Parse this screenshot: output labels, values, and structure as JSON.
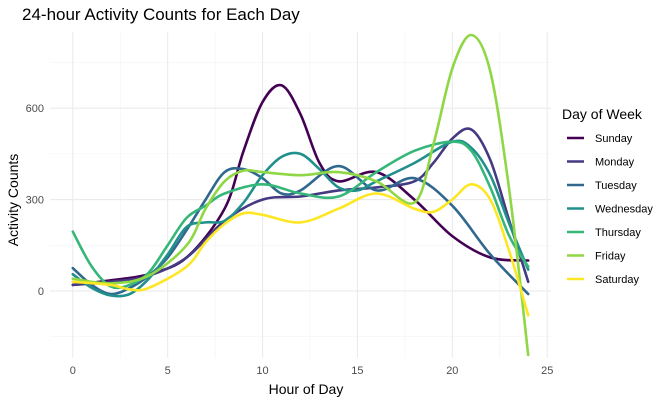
{
  "chart_data": {
    "type": "line",
    "title": "24-hour Activity Counts for Each Day",
    "xlabel": "Hour of Day",
    "ylabel": "Activity Counts",
    "xlim": [
      -1.2,
      25.2
    ],
    "ylim": [
      -220,
      850
    ],
    "x_ticks": [
      0,
      5,
      10,
      15,
      20,
      25
    ],
    "y_ticks": [
      0,
      300,
      600
    ],
    "grid": true,
    "legend": {
      "title": "Day of Week",
      "position": "right"
    },
    "series": [
      {
        "name": "Sunday",
        "color": "#440154",
        "x": [
          0,
          2,
          4,
          6,
          8,
          9,
          10,
          11,
          12,
          13,
          14,
          16,
          18,
          20,
          22,
          24
        ],
        "y": [
          20,
          35,
          55,
          110,
          270,
          460,
          620,
          675,
          580,
          420,
          360,
          390,
          300,
          180,
          110,
          100
        ]
      },
      {
        "name": "Monday",
        "color": "#443a83",
        "x": [
          0,
          2,
          4,
          6,
          8,
          10,
          12,
          14,
          16,
          18,
          19,
          20,
          21,
          22,
          23,
          24
        ],
        "y": [
          20,
          30,
          50,
          110,
          230,
          300,
          310,
          330,
          340,
          360,
          420,
          500,
          530,
          430,
          230,
          30
        ]
      },
      {
        "name": "Tuesday",
        "color": "#31688e",
        "x": [
          0,
          1,
          2,
          3,
          4,
          5,
          6,
          7,
          8,
          9,
          10,
          11,
          12,
          14,
          16,
          18,
          20,
          22,
          24
        ],
        "y": [
          75,
          20,
          -10,
          10,
          50,
          110,
          200,
          300,
          390,
          400,
          370,
          320,
          330,
          410,
          330,
          370,
          280,
          120,
          -10
        ]
      },
      {
        "name": "Wednesday",
        "color": "#21908d",
        "x": [
          0,
          1,
          2,
          3,
          4,
          5,
          6,
          7,
          8,
          9,
          10,
          11,
          12,
          13,
          14,
          15,
          16,
          18,
          20,
          21,
          22,
          23,
          24
        ],
        "y": [
          55,
          10,
          -15,
          -10,
          40,
          120,
          210,
          225,
          230,
          290,
          380,
          440,
          450,
          400,
          340,
          330,
          360,
          420,
          490,
          470,
          380,
          220,
          70
        ]
      },
      {
        "name": "Thursday",
        "color": "#35b779",
        "x": [
          0,
          1,
          2,
          3,
          4,
          5,
          6,
          7,
          8,
          10,
          12,
          14,
          16,
          18,
          20,
          21,
          22,
          23,
          24
        ],
        "y": [
          195,
          80,
          15,
          20,
          60,
          150,
          240,
          280,
          320,
          350,
          320,
          310,
          390,
          460,
          490,
          460,
          340,
          180,
          80
        ]
      },
      {
        "name": "Friday",
        "color": "#8fd744",
        "x": [
          0,
          2,
          4,
          6,
          7,
          8,
          9,
          10,
          12,
          14,
          16,
          18,
          19,
          20,
          21,
          22,
          23,
          24
        ],
        "y": [
          40,
          25,
          50,
          150,
          270,
          360,
          395,
          390,
          380,
          390,
          360,
          290,
          480,
          730,
          840,
          720,
          330,
          -210
        ]
      },
      {
        "name": "Saturday",
        "color": "#fde725",
        "x": [
          0,
          2,
          3,
          4,
          6,
          7,
          8,
          9,
          10,
          12,
          14,
          16,
          18,
          19,
          20,
          21,
          22,
          23,
          24
        ],
        "y": [
          30,
          20,
          5,
          10,
          80,
          160,
          220,
          255,
          250,
          225,
          270,
          320,
          270,
          260,
          300,
          350,
          300,
          130,
          -80
        ]
      }
    ]
  }
}
